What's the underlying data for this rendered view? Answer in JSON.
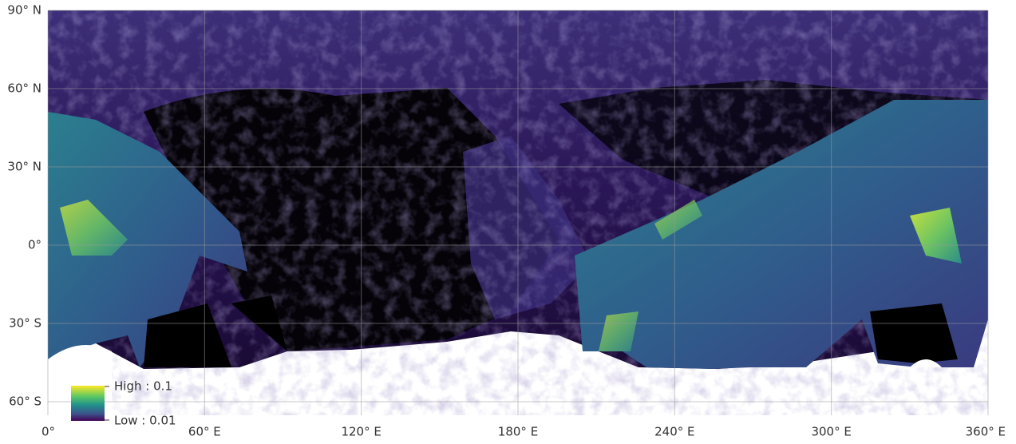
{
  "map": {
    "xticks": [
      {
        "value": 0,
        "label": "0°"
      },
      {
        "value": 60,
        "label": "60° E"
      },
      {
        "value": 120,
        "label": "120° E"
      },
      {
        "value": 180,
        "label": "180° E"
      },
      {
        "value": 240,
        "label": "240° E"
      },
      {
        "value": 300,
        "label": "300° E"
      },
      {
        "value": 360,
        "label": "360° E"
      }
    ],
    "yticks": [
      {
        "value": 90,
        "label": "90° N"
      },
      {
        "value": 60,
        "label": "60° N"
      },
      {
        "value": 30,
        "label": "30° N"
      },
      {
        "value": 0,
        "label": "0°"
      },
      {
        "value": -30,
        "label": "30° S"
      },
      {
        "value": -60,
        "label": "60° S"
      }
    ],
    "legend": {
      "high": "High : 0.1",
      "low": "Low : 0.01"
    }
  }
}
